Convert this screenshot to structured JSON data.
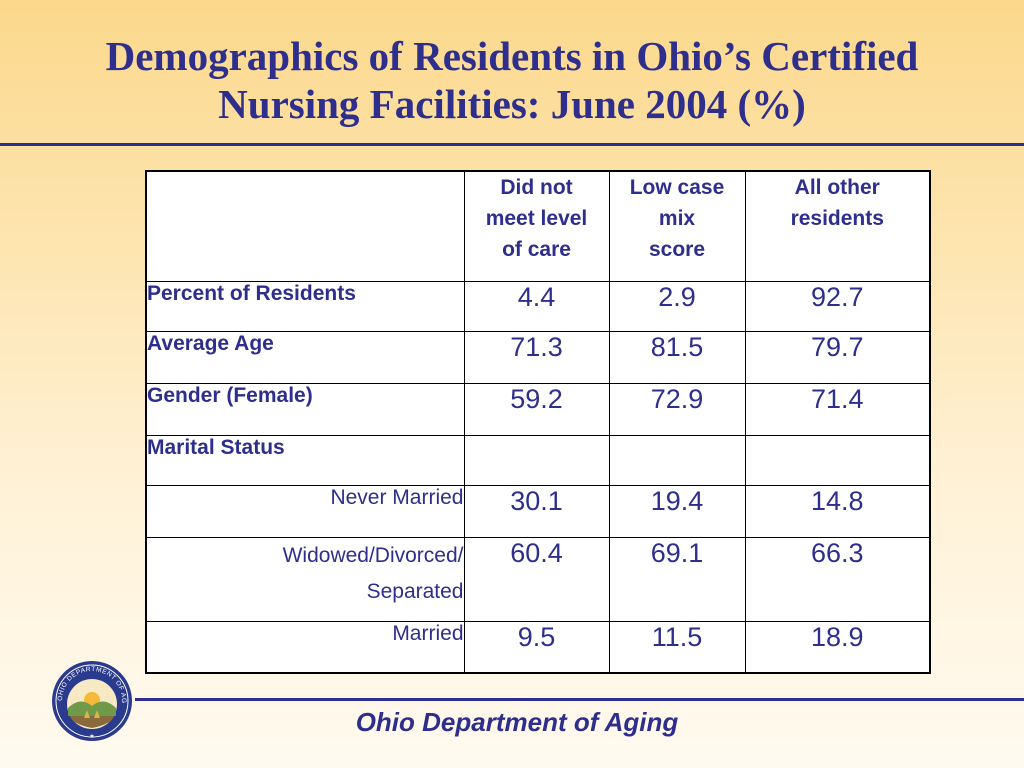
{
  "slide": {
    "title_line1": "Demographics of Residents in Ohio’s Certified",
    "title_line2": "Nursing Facilities:  June 2004 (%)",
    "footer": "Ohio Department of Aging",
    "seal_text": "OHIO DEPARTMENT OF AGING"
  },
  "table": {
    "columns": [
      "Did not meet level of care",
      "Low case mix score",
      "All other residents"
    ],
    "column_lines": [
      [
        "Did not",
        "meet level",
        "of care"
      ],
      [
        "Low case",
        "mix",
        "score"
      ],
      [
        "All other",
        "residents"
      ]
    ],
    "rows": [
      {
        "label": "Percent of Residents",
        "values": [
          "4.4",
          "2.9",
          "92.7"
        ]
      },
      {
        "label": "Average Age",
        "values": [
          "71.3",
          "81.5",
          "79.7"
        ]
      },
      {
        "label": "Gender (Female)",
        "values": [
          "59.2",
          "72.9",
          "71.4"
        ]
      },
      {
        "label": "Marital Status",
        "values": [
          "",
          "",
          ""
        ]
      },
      {
        "label": "Never Married",
        "values": [
          "30.1",
          "19.4",
          "14.8"
        ]
      },
      {
        "label_lines": [
          "Widowed/Divorced/",
          "Separated"
        ],
        "values": [
          "60.4",
          "69.1",
          "66.3"
        ]
      },
      {
        "label": "Married",
        "values": [
          "9.5",
          "11.5",
          "18.9"
        ]
      }
    ]
  },
  "colors": {
    "text": "#2e2e8c",
    "background_top": "#fbd88c",
    "background_bottom": "#fffaf0",
    "seal_blue": "#2a3a8c"
  }
}
